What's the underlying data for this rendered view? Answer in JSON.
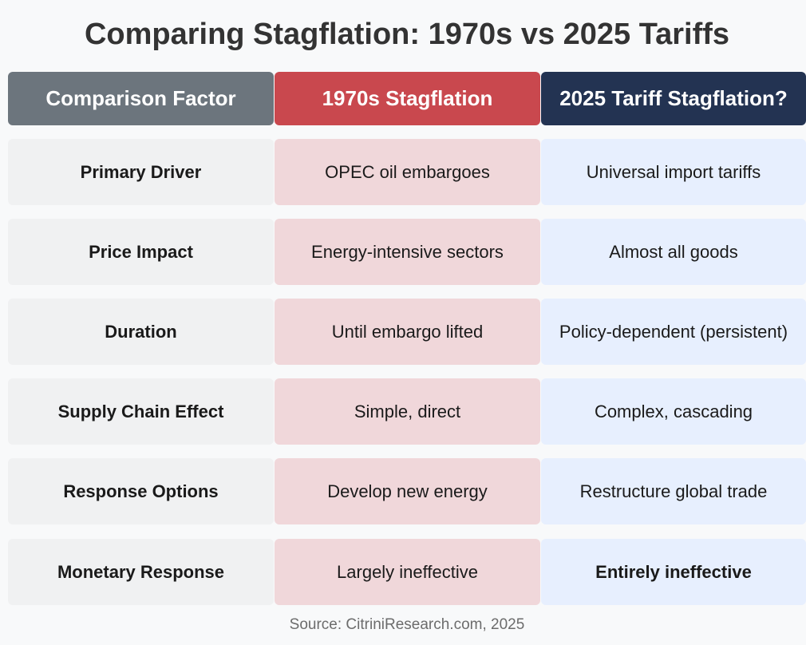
{
  "title": "Comparing Stagflation: 1970s vs 2025 Tariffs",
  "headers": [
    "Comparison Factor",
    "1970s Stagflation",
    "2025 Tariff Stagflation?"
  ],
  "rows": [
    {
      "factor": "Primary Driver",
      "seventies": "OPEC oil embargoes",
      "tariffs2025": "Universal import tariffs"
    },
    {
      "factor": "Price Impact",
      "seventies": "Energy-intensive sectors",
      "tariffs2025": "Almost all goods"
    },
    {
      "factor": "Duration",
      "seventies": "Until embargo lifted",
      "tariffs2025": "Policy-dependent (persistent)"
    },
    {
      "factor": "Supply Chain Effect",
      "seventies": "Simple, direct",
      "tariffs2025": "Complex, cascading"
    },
    {
      "factor": "Response Options",
      "seventies": "Develop new energy",
      "tariffs2025": "Restructure global trade"
    },
    {
      "factor": "Monetary Response",
      "seventies": "Largely ineffective",
      "tariffs2025": "Entirely ineffective"
    }
  ],
  "source": "Source: CitriniResearch.com, 2025",
  "colors": {
    "factor_header": "#6c757d",
    "seventies_header": "#c9484e",
    "tariffs_header": "#233352",
    "factor_cell": "#f0f1f2",
    "seventies_cell": "#f0d7da",
    "tariffs_cell": "#e7effe"
  }
}
